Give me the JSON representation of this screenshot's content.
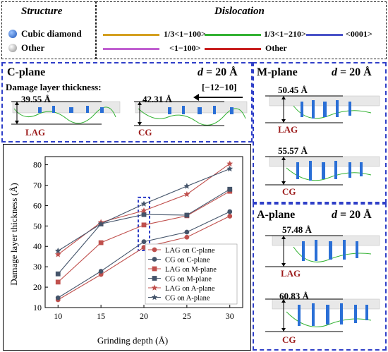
{
  "legend": {
    "structure_title": "Structure",
    "dislocation_title": "Dislocation",
    "structure_items": [
      {
        "label": "Cubic diamond",
        "color": "#2a6fd6"
      },
      {
        "label": "Other",
        "color": "#c8c8c8"
      }
    ],
    "dislocation_items": [
      {
        "label": "1/3<1−100>",
        "color": "#d4a020"
      },
      {
        "label": "1/3<1−210>",
        "color": "#33b233"
      },
      {
        "label": "<0001>",
        "color": "#4a52c8"
      },
      {
        "label": "<1−100>",
        "color": "#c060d0"
      },
      {
        "label": "Other",
        "color": "#c82020"
      }
    ]
  },
  "c_plane": {
    "title": "C-plane",
    "d_prefix": "d",
    "d_value": " = 20 Å",
    "subtitle": "Damage layer thickness:",
    "direction": "[−12−10]",
    "lag_value": "39.55 Å",
    "lag_label": "LAG",
    "cg_value": "42.31 Å",
    "cg_label": "CG"
  },
  "m_plane": {
    "title": "M-plane",
    "d_prefix": "d",
    "d_value": " = 20 Å",
    "lag_value": "50.45 Å",
    "lag_label": "LAG",
    "cg_value": "55.57 Å",
    "cg_label": "CG"
  },
  "a_plane": {
    "title": "A-plane",
    "d_prefix": "d",
    "d_value": " = 20 Å",
    "lag_value": "57.48 Å",
    "lag_label": "LAG",
    "cg_value": "60.83 Å",
    "cg_label": "CG"
  },
  "chart_data": {
    "type": "line",
    "xlabel": "Grinding depth (Å)",
    "ylabel": "Damage layer thickness (Å)",
    "x": [
      10,
      15,
      20,
      25,
      30
    ],
    "xticks": [
      "10",
      "15",
      "20",
      "25",
      "30"
    ],
    "yticks": [
      "10",
      "20",
      "30",
      "40",
      "50",
      "60",
      "70",
      "80"
    ],
    "xlim": [
      8.5,
      31.5
    ],
    "ylim": [
      10,
      84
    ],
    "legend_position": "bottom-right",
    "series": [
      {
        "name": "LAG on C-plane",
        "marker": "circle",
        "color": "#c0504d",
        "values": [
          13.8,
          26.2,
          39.5,
          44.5,
          54.8
        ]
      },
      {
        "name": "CG on C-plane",
        "marker": "circle",
        "color": "#44546a",
        "values": [
          14.8,
          27.8,
          42.3,
          47.0,
          57.0
        ]
      },
      {
        "name": "LAG on M-plane",
        "marker": "square",
        "color": "#c0504d",
        "values": [
          22.5,
          41.8,
          50.5,
          55.0,
          67.0
        ]
      },
      {
        "name": "CG on M-plane",
        "marker": "square",
        "color": "#44546a",
        "values": [
          26.5,
          51.0,
          55.6,
          55.3,
          68.0
        ]
      },
      {
        "name": "LAG on A-plane",
        "marker": "star",
        "color": "#c0504d",
        "values": [
          36.0,
          51.8,
          57.5,
          65.5,
          80.5
        ]
      },
      {
        "name": "CG on A-plane",
        "marker": "star",
        "color": "#44546a",
        "values": [
          37.8,
          51.0,
          60.8,
          69.5,
          78.0
        ]
      }
    ],
    "highlight_x": 20
  }
}
